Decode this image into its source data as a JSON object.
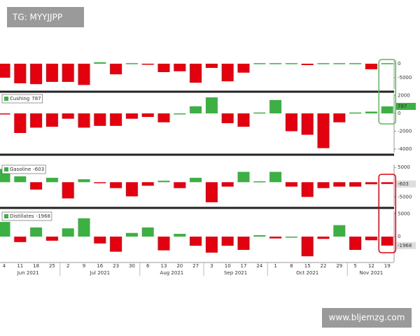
{
  "watermark_top": "TG: MYYJJPP",
  "watermark_bottom": "www.bljemzg.com",
  "chart_data": [
    {
      "type": "bar",
      "positive_color": "#3cb043",
      "negative_color": "#e3000f",
      "values": [
        -5000,
        -7000,
        -7300,
        -6500,
        -6500,
        -7600,
        500,
        -3800,
        200,
        -300,
        -3000,
        -2700,
        -6800,
        -1500,
        -6300,
        -3200,
        200,
        200,
        200,
        -500,
        200,
        200,
        200,
        -2000,
        200
      ],
      "ylim": [
        -9000,
        1000
      ],
      "yticks": [
        0,
        -5000
      ]
    },
    {
      "type": "bar",
      "name": "Cushing",
      "positive_color": "#3cb043",
      "negative_color": "#e3000f",
      "values": [
        -100,
        -2200,
        -1600,
        -1500,
        -600,
        -1600,
        -1400,
        -1400,
        -600,
        -400,
        -1000,
        0,
        800,
        1800,
        -1100,
        -1500,
        100,
        1500,
        -2000,
        -2400,
        -3900,
        -1000,
        100,
        200,
        787
      ],
      "ylim": [
        -4400,
        2200
      ],
      "yticks": [
        2000,
        0,
        -2000,
        -4000
      ]
    },
    {
      "type": "bar",
      "name": "Gasoline",
      "positive_color": "#3cb043",
      "negative_color": "#e3000f",
      "values": [
        4500,
        2000,
        -2500,
        1500,
        -5500,
        1000,
        -300,
        -2000,
        -4800,
        -1200,
        500,
        -2000,
        1500,
        -6800,
        -1500,
        3500,
        300,
        3500,
        -1500,
        -5000,
        -2000,
        -1500,
        -1500,
        -700,
        -603
      ],
      "ylim": [
        -8000,
        6000
      ],
      "yticks": [
        5000,
        -5000
      ]
    },
    {
      "type": "bar",
      "name": "Distillates",
      "positive_color": "#3cb043",
      "negative_color": "#e3000f",
      "values": [
        3200,
        -1200,
        2000,
        -900,
        1800,
        4000,
        -1500,
        -3300,
        800,
        2000,
        -3000,
        600,
        -2000,
        -3500,
        -2000,
        -2900,
        300,
        -400,
        0,
        -4300,
        -500,
        2500,
        -2900,
        -800,
        -1968
      ],
      "ylim": [
        -5500,
        5500
      ],
      "yticks": [
        5000,
        0
      ],
      "categories": [
        "4",
        "11",
        "18",
        "25",
        "2",
        "9",
        "16",
        "23",
        "30",
        "6",
        "13",
        "20",
        "27",
        "3",
        "10",
        "17",
        "24",
        "1",
        "8",
        "15",
        "22",
        "29",
        "5",
        "12",
        "19"
      ],
      "months": [
        "Jun 2021",
        "Jul 2021",
        "Aug 2021",
        "Sep 2021",
        "Oct 2021",
        "Nov 2021"
      ]
    }
  ]
}
